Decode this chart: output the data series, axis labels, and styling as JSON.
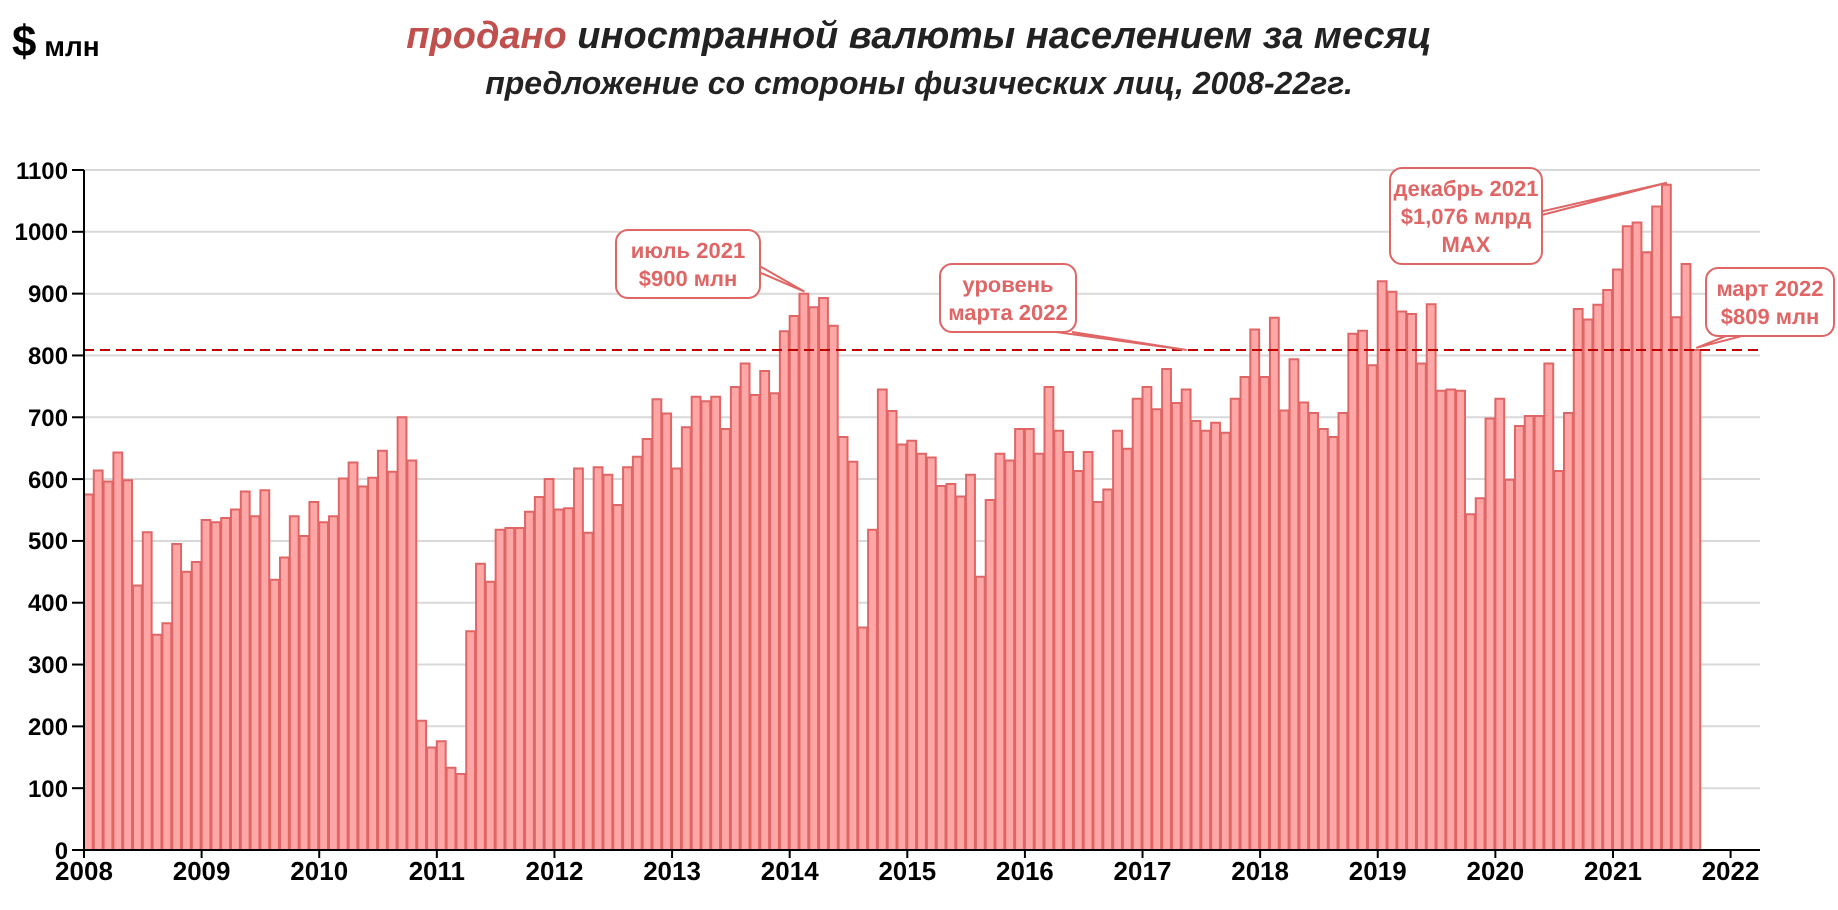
{
  "chart_data": {
    "type": "bar",
    "title": "продано иностранной валюты населением за месяц",
    "subtitle": "предложение со стороны физических лиц, 2008-22гг.",
    "ylabel": "$ млн",
    "x": [
      "2008-01-16",
      "2008-02-16",
      "2008-03-16",
      "2008-04-16",
      "2008-05-16",
      "2008-06-16",
      "2008-07-16",
      "2008-08-16",
      "2008-09-16",
      "2008-10-16",
      "2008-11-16",
      "2008-12-16",
      "2009-01-16",
      "2009-02-16",
      "2009-03-16",
      "2009-04-16",
      "2009-05-16",
      "2009-06-16",
      "2009-07-16",
      "2009-08-16",
      "2009-09-16",
      "2009-10-16",
      "2009-11-16",
      "2009-12-16",
      "2010-01-16",
      "2010-02-16",
      "2010-03-16",
      "2010-04-16",
      "2010-05-16",
      "2010-06-16",
      "2010-07-16",
      "2010-08-16",
      "2010-09-16",
      "2010-10-16",
      "2010-11-16",
      "2010-12-16",
      "2011-01-16",
      "2011-02-16",
      "2011-03-16",
      "2011-04-16",
      "2011-05-16",
      "2011-06-16",
      "2011-07-16",
      "2011-08-16",
      "2011-09-16",
      "2011-10-16",
      "2011-11-16",
      "2011-12-16",
      "2012-01-16",
      "2012-02-16",
      "2012-03-16",
      "2012-04-16",
      "2012-05-16",
      "2012-06-16",
      "2012-07-16",
      "2012-08-16",
      "2012-09-16",
      "2012-10-16",
      "2012-11-16",
      "2012-12-16",
      "2013-01-16",
      "2013-02-16",
      "2013-03-16",
      "2013-04-16",
      "2013-05-16",
      "2013-06-16",
      "2013-07-16",
      "2013-08-16",
      "2013-09-16",
      "2013-10-16",
      "2013-11-16",
      "2013-12-16",
      "2014-01-16",
      "2014-02-16",
      "2014-03-16",
      "2014-04-16",
      "2014-05-16",
      "2014-06-16",
      "2014-07-16",
      "2014-08-16",
      "2014-09-16",
      "2014-10-16",
      "2014-11-16",
      "2014-12-16",
      "2015-01-16",
      "2015-02-16",
      "2015-03-16",
      "2015-04-16",
      "2015-05-16",
      "2015-06-16",
      "2015-07-16",
      "2015-08-16",
      "2015-09-16",
      "2015-10-16",
      "2015-11-16",
      "2015-12-16",
      "2016-01-16",
      "2016-02-16",
      "2016-03-16",
      "2016-04-16",
      "2016-05-16",
      "2016-06-16",
      "2016-07-16",
      "2016-08-16",
      "2016-09-16",
      "2016-10-16",
      "2016-11-16",
      "2016-12-16",
      "2017-01-16",
      "2017-02-16",
      "2017-03-16",
      "2017-04-16",
      "2017-05-16",
      "2017-06-16",
      "2017-07-16",
      "2017-08-16",
      "2017-09-16",
      "2017-10-16",
      "2017-11-16",
      "2017-12-16",
      "2018-01-16",
      "2018-02-16",
      "2018-03-16",
      "2018-04-16",
      "2018-05-16",
      "2018-06-16",
      "2018-07-16",
      "2018-08-16",
      "2018-09-16",
      "2018-10-16",
      "2018-11-16",
      "2018-12-16",
      "2019-01-16",
      "2019-02-16",
      "2019-03-16",
      "2019-04-16",
      "2019-05-16",
      "2019-06-16",
      "2019-07-16",
      "2019-08-16",
      "2019-09-16",
      "2019-10-16",
      "2019-11-16",
      "2019-12-16",
      "2020-01-16",
      "2020-02-16",
      "2020-03-16",
      "2020-04-16",
      "2020-05-16",
      "2020-06-16",
      "2020-07-16",
      "2020-08-16",
      "2020-09-16",
      "2020-10-16",
      "2020-11-16",
      "2020-12-16",
      "2021-01-16",
      "2021-02-16",
      "2021-03-16",
      "2021-04-16",
      "2021-05-16",
      "2021-06-16",
      "2021-07-16",
      "2021-08-16",
      "2021-09-16"
    ],
    "values": [
      575,
      614,
      596,
      643,
      598,
      428,
      514,
      348,
      367,
      495,
      450,
      466,
      534,
      530,
      537,
      551,
      580,
      540,
      582,
      437,
      473,
      540,
      508,
      563,
      530,
      540,
      601,
      627,
      588,
      602,
      646,
      612,
      700,
      630,
      209,
      166,
      176,
      133,
      123,
      354,
      463,
      434,
      518,
      521,
      521,
      547,
      571,
      600,
      551,
      553,
      617,
      513,
      619,
      607,
      558,
      619,
      636,
      665,
      729,
      706,
      617,
      684,
      733,
      726,
      733,
      681,
      749,
      787,
      736,
      775,
      739,
      839,
      864,
      900,
      878,
      893,
      848,
      668,
      628,
      360,
      518,
      745,
      710,
      656,
      662,
      641,
      635,
      589,
      592,
      572,
      607,
      442,
      566,
      641,
      630,
      681,
      681,
      641,
      749,
      678,
      644,
      613,
      644,
      563,
      583,
      678,
      649,
      730,
      749,
      713,
      778,
      723,
      745,
      694,
      678,
      691,
      675,
      730,
      765,
      842,
      765,
      861,
      711,
      794,
      724,
      707,
      681,
      668,
      707,
      835,
      840,
      784,
      920,
      903,
      871,
      867,
      787,
      883,
      743,
      745,
      743,
      543,
      569,
      698,
      730,
      599,
      686,
      702,
      702,
      787,
      613,
      707,
      875,
      858,
      882,
      906,
      939,
      1009,
      1015,
      967,
      1041,
      1076,
      862,
      948,
      809
    ],
    "color": "#ffa6a6",
    "xlim": [
      "2008-01-01",
      "2022-04-01"
    ],
    "xticks": [
      "2008",
      "2009",
      "2010",
      "2011",
      "2012",
      "2013",
      "2014",
      "2015",
      "2016",
      "2017",
      "2018",
      "2019",
      "2020",
      "2021",
      "2022"
    ],
    "ylim": [
      0,
      1100
    ],
    "yticks": [
      0,
      100,
      200,
      300,
      400,
      500,
      600,
      700,
      800,
      900,
      1000,
      1100
    ],
    "grid": "y",
    "ref_lines": [
      {
        "axis": "y",
        "value": 809,
        "label": "уровень\nмарта 2022",
        "color": "#c00000",
        "line_style": "dashed"
      }
    ],
    "annotations": [
      {
        "text": "июль 2021\n$900 млн",
        "x": "2014-02-16",
        "y": 900
      },
      {
        "text": "декабрь 2021\n$1,076 млрд\nMAX",
        "x": "2021-06-16",
        "y": 1076
      },
      {
        "text": "март 2022\n$809 млн",
        "x": "2021-09-16",
        "y": 809
      }
    ]
  }
}
